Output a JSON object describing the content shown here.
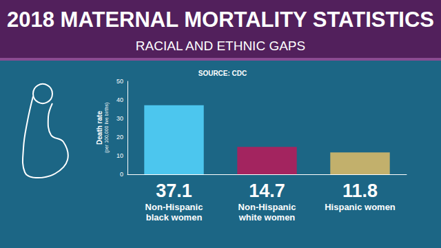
{
  "chart_data": {
    "type": "bar",
    "title": "2018 MATERNAL MORTALITY STATISTICS",
    "subtitle": "RACIAL AND ETHNIC GAPS",
    "source": "SOURCE: CDC",
    "y_label": "Death rate",
    "y_label_note": "(per 100,000 live births)",
    "categories": [
      "Non-Hispanic black women",
      "Non-Hispanic white women",
      "Hispanic women"
    ],
    "values": [
      37.1,
      14.7,
      11.8
    ],
    "colors": [
      "#4cc6ee",
      "#a3245f",
      "#c2b06c"
    ],
    "ylim": [
      0,
      50
    ],
    "yticks": [
      0,
      10,
      20,
      30,
      40,
      50
    ],
    "grid": false,
    "data_labels": true
  }
}
